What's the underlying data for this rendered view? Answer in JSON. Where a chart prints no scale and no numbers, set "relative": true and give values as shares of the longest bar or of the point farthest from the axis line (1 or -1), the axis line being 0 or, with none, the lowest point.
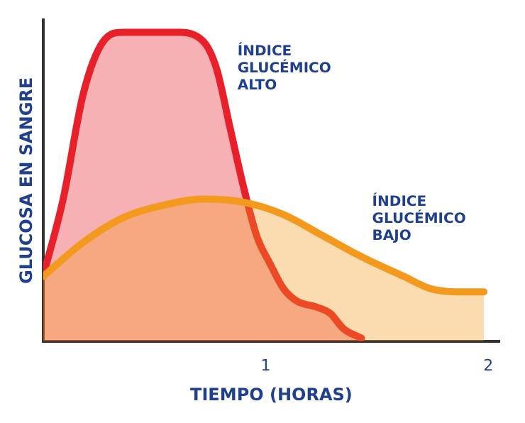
{
  "chart_data": {
    "type": "area",
    "xlabel": "TIEMPO (HORAS)",
    "ylabel": "GLUCOSA EN SANGRE",
    "relative": true,
    "xlim": [
      0,
      2.05
    ],
    "xticks": [
      1,
      2
    ],
    "grid": false,
    "legend": false,
    "line_style": "solid",
    "marker": "none",
    "series": [
      {
        "name": "ÍNDICE GLUCÉMICO ALTO",
        "color": "#e8202a",
        "x": [
          0,
          0.09,
          0.18,
          0.27,
          0.36,
          0.6,
          0.72,
          0.78,
          0.84,
          0.9,
          0.96,
          1.02,
          1.08,
          1.14,
          1.23,
          1.29,
          1.35,
          1.43
        ],
        "values": [
          0.21,
          0.46,
          0.8,
          0.97,
          1.0,
          1.0,
          0.97,
          0.88,
          0.69,
          0.5,
          0.34,
          0.25,
          0.17,
          0.13,
          0.11,
          0.09,
          0.04,
          0.01
        ]
      },
      {
        "name": "ÍNDICE GLUCÉMICO BAJO",
        "color": "#f39a1e",
        "x": [
          0,
          0.18,
          0.36,
          0.54,
          0.72,
          0.9,
          1.08,
          1.26,
          1.44,
          1.62,
          1.74,
          1.86,
          1.98
        ],
        "values": [
          0.21,
          0.32,
          0.4,
          0.44,
          0.46,
          0.45,
          0.41,
          0.34,
          0.27,
          0.21,
          0.17,
          0.16,
          0.16
        ]
      }
    ]
  }
}
